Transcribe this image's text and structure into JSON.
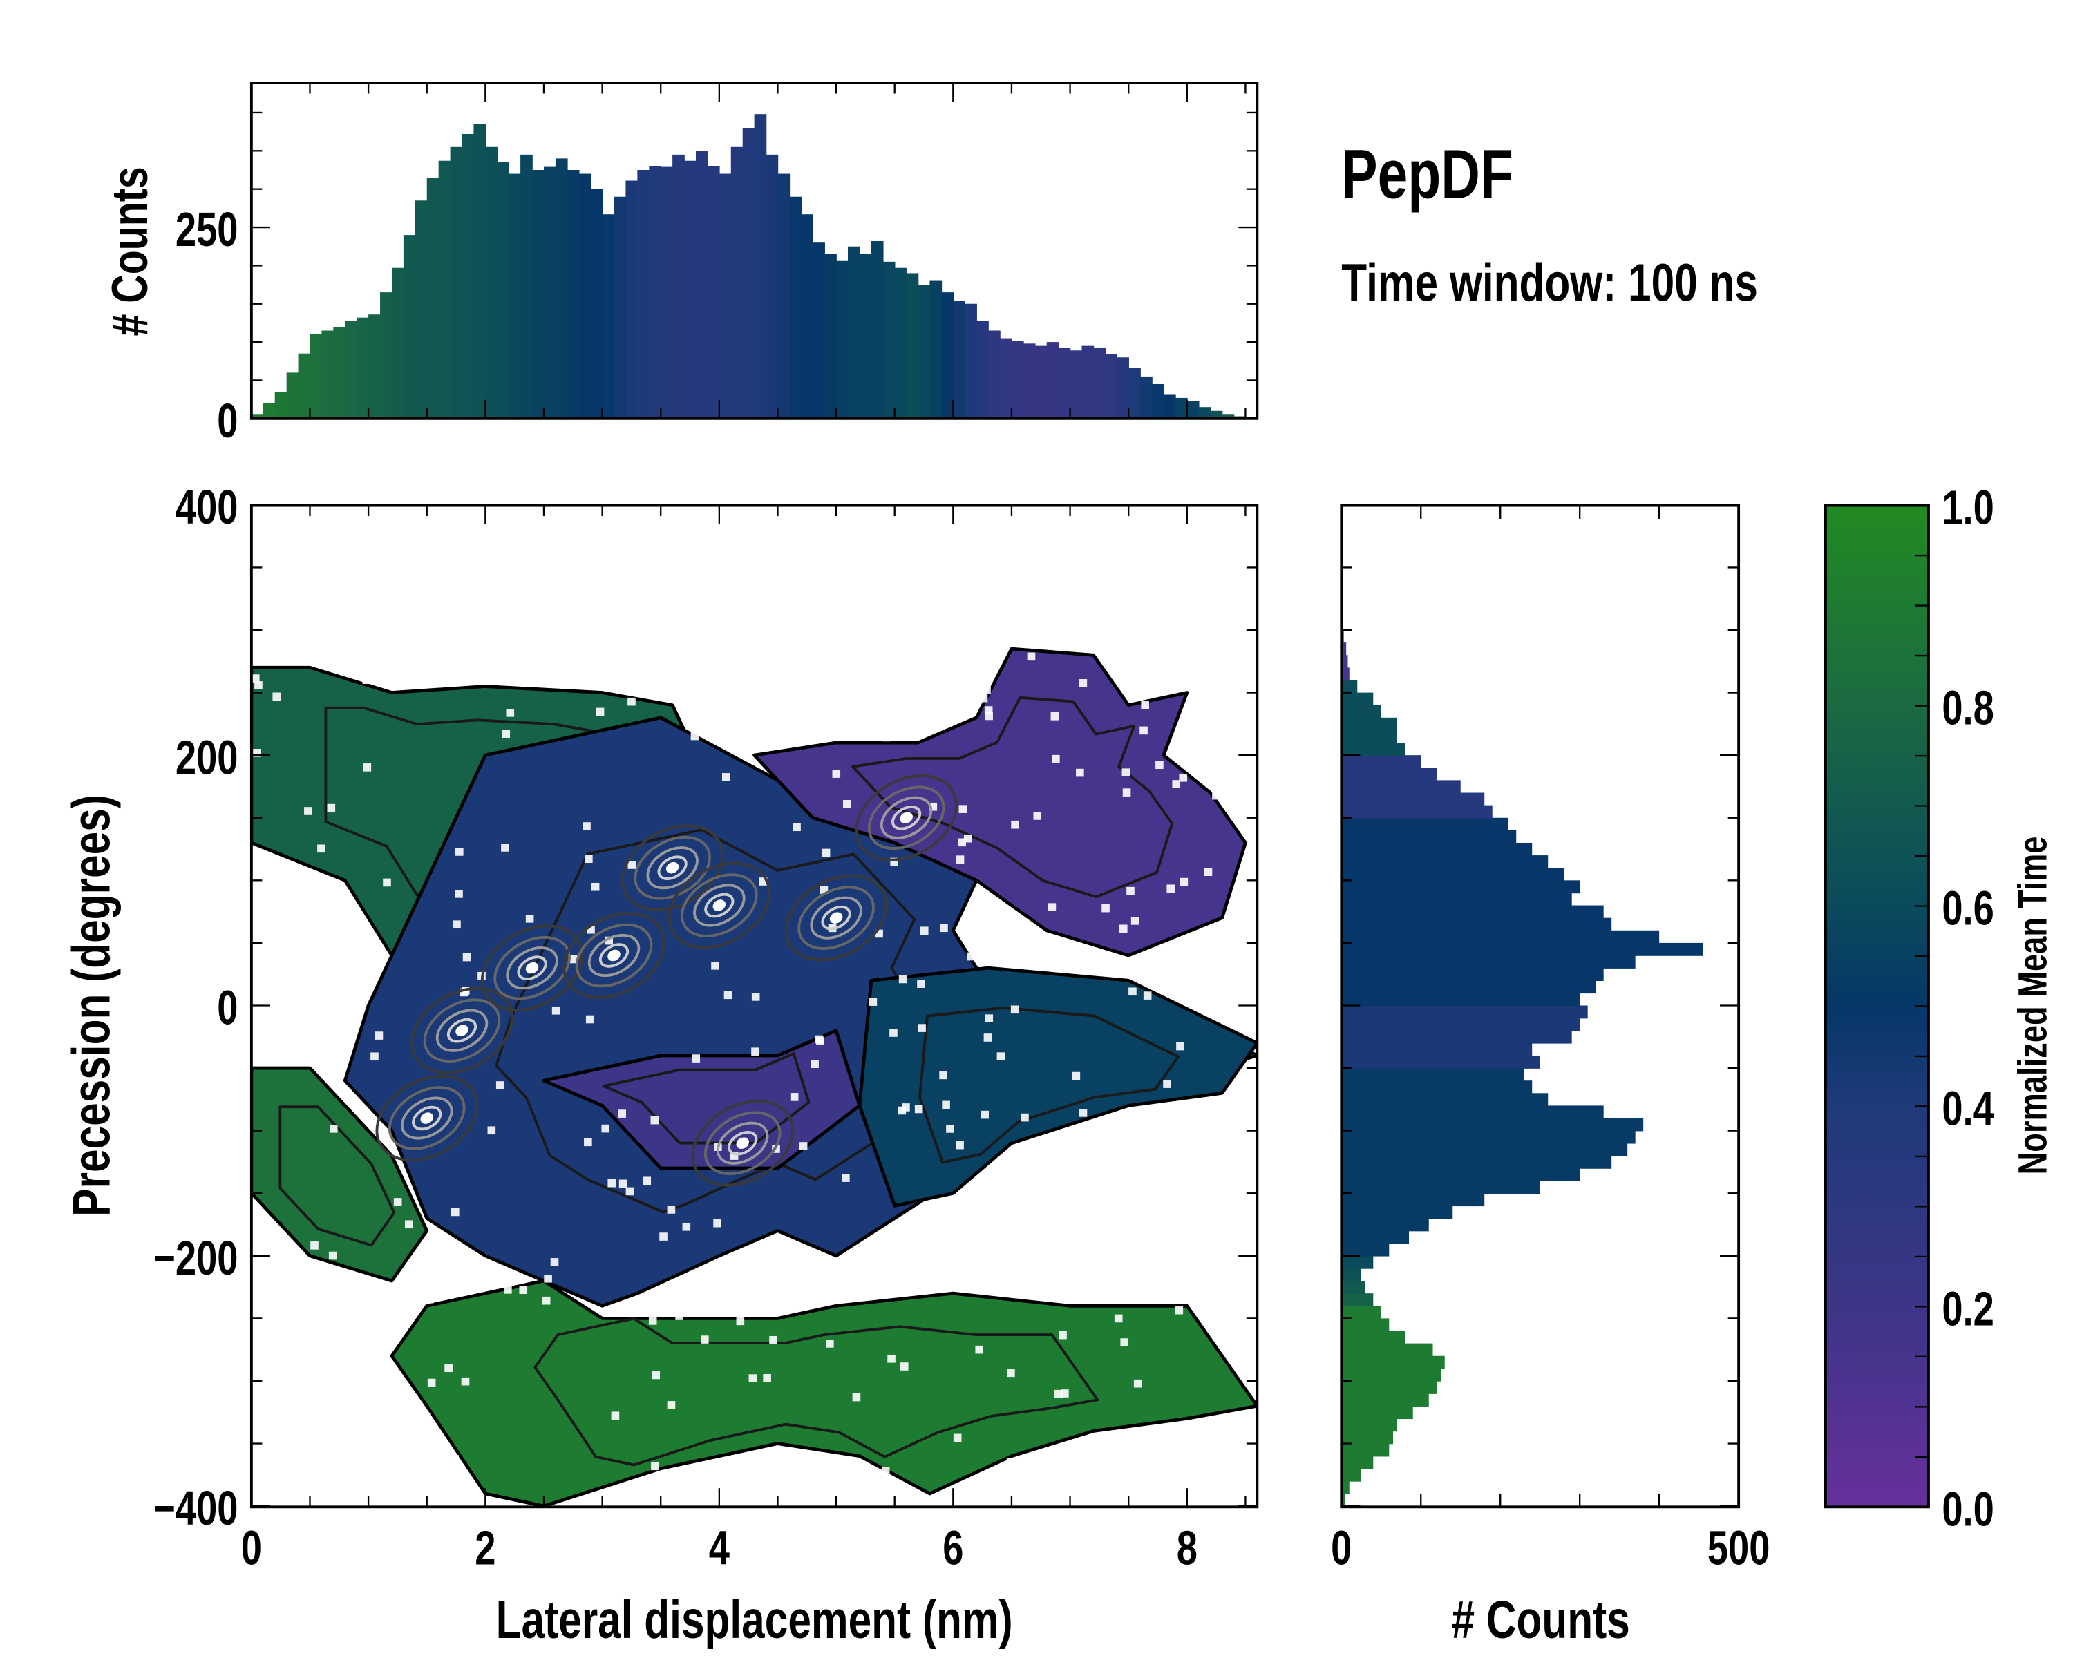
{
  "title": "PepDF",
  "subtitle": "Time window: 100 ns",
  "colormap": {
    "stops": [
      [
        0,
        "#66309a"
      ],
      [
        0.2,
        "#3d3588"
      ],
      [
        0.4,
        "#1f3a7a"
      ],
      [
        0.5,
        "#063768"
      ],
      [
        0.6,
        "#0b4a5c"
      ],
      [
        0.8,
        "#1a6a42"
      ],
      [
        1,
        "#228b22"
      ]
    ]
  },
  "chart_data": [
    {
      "type": "bar",
      "name": "top-histogram",
      "ylabel": "# Counts",
      "yticks": [
        "0",
        "250"
      ],
      "ytick_values": [
        0,
        250
      ],
      "xlim": [
        0,
        8.6
      ],
      "bin_start": 0,
      "bin_width": 0.1,
      "values": [
        5,
        20,
        35,
        60,
        85,
        110,
        115,
        120,
        128,
        132,
        136,
        165,
        197,
        240,
        285,
        315,
        337,
        355,
        372,
        385,
        355,
        335,
        320,
        345,
        325,
        329,
        340,
        325,
        320,
        300,
        267,
        290,
        311,
        325,
        330,
        329,
        345,
        337,
        350,
        330,
        320,
        355,
        380,
        398,
        345,
        320,
        290,
        267,
        230,
        215,
        206,
        225,
        215,
        232,
        205,
        197,
        190,
        175,
        180,
        165,
        154,
        150,
        128,
        115,
        105,
        101,
        98,
        95,
        100,
        92,
        89,
        95,
        92,
        84,
        80,
        66,
        55,
        45,
        31,
        27,
        23,
        15,
        10,
        5,
        3,
        1
      ],
      "mean_time": [
        0.9,
        0.9,
        0.88,
        0.86,
        0.85,
        0.84,
        0.82,
        0.8,
        0.78,
        0.76,
        0.75,
        0.73,
        0.72,
        0.7,
        0.7,
        0.68,
        0.68,
        0.67,
        0.66,
        0.65,
        0.64,
        0.62,
        0.6,
        0.58,
        0.56,
        0.55,
        0.54,
        0.52,
        0.5,
        0.5,
        0.48,
        0.45,
        0.42,
        0.4,
        0.38,
        0.37,
        0.36,
        0.36,
        0.35,
        0.35,
        0.36,
        0.37,
        0.38,
        0.4,
        0.42,
        0.45,
        0.48,
        0.5,
        0.5,
        0.52,
        0.53,
        0.55,
        0.55,
        0.56,
        0.58,
        0.6,
        0.62,
        0.6,
        0.55,
        0.5,
        0.45,
        0.4,
        0.35,
        0.3,
        0.28,
        0.27,
        0.26,
        0.25,
        0.25,
        0.26,
        0.27,
        0.27,
        0.28,
        0.3,
        0.35,
        0.4,
        0.45,
        0.48,
        0.5,
        0.55,
        0.55,
        0.6,
        0.65,
        0.7,
        0.75,
        0.8
      ]
    },
    {
      "type": "heatmap",
      "name": "main-2d-distribution",
      "xlabel": "Lateral displacement (nm)",
      "ylabel": "Precession (degrees)",
      "xlim": [
        0,
        8.6
      ],
      "ylim": [
        -400,
        400
      ],
      "xticks": [
        "0",
        "2",
        "4",
        "6",
        "8"
      ],
      "xtick_values": [
        0,
        2,
        4,
        6,
        8
      ],
      "yticks": [
        "400",
        "200",
        "0",
        "−200",
        "−400"
      ],
      "ytick_values": [
        400,
        200,
        0,
        -200,
        -400
      ],
      "regions": [
        {
          "mean_time": 0.75,
          "points": [
            [
              0,
              270
            ],
            [
              0.5,
              270
            ],
            [
              1.2,
              250
            ],
            [
              2,
              255
            ],
            [
              3,
              250
            ],
            [
              3.6,
              240
            ],
            [
              3.8,
              200
            ],
            [
              3.2,
              150
            ],
            [
              2.5,
              100
            ],
            [
              1.8,
              60
            ],
            [
              1.2,
              40
            ],
            [
              0.8,
              100
            ],
            [
              0,
              130
            ]
          ]
        },
        {
          "mean_time": 0.42,
          "points": [
            [
              1.2,
              40
            ],
            [
              2,
              200
            ],
            [
              3.5,
              230
            ],
            [
              4.5,
              180
            ],
            [
              5,
              190
            ],
            [
              5.5,
              200
            ],
            [
              6,
              150
            ],
            [
              6.3,
              120
            ],
            [
              6,
              60
            ],
            [
              6.2,
              30
            ],
            [
              6.8,
              10
            ],
            [
              8,
              -10
            ],
            [
              8.6,
              -40
            ],
            [
              7.5,
              -70
            ],
            [
              6.5,
              -100
            ],
            [
              6,
              -140
            ],
            [
              5.5,
              -170
            ],
            [
              5,
              -200
            ],
            [
              4.5,
              -180
            ],
            [
              4,
              -200
            ],
            [
              3.3,
              -230
            ],
            [
              3,
              -240
            ],
            [
              2,
              -200
            ],
            [
              1.5,
              -170
            ],
            [
              1.2,
              -100
            ],
            [
              0.8,
              -60
            ],
            [
              1,
              0
            ]
          ]
        },
        {
          "mean_time": 0.15,
          "points": [
            [
              4.3,
              200
            ],
            [
              5,
              210
            ],
            [
              5.7,
              210
            ],
            [
              6.2,
              230
            ],
            [
              6.5,
              285
            ],
            [
              7.2,
              280
            ],
            [
              7.5,
              240
            ],
            [
              8,
              250
            ],
            [
              7.8,
              200
            ],
            [
              8.2,
              170
            ],
            [
              8.5,
              130
            ],
            [
              8.3,
              70
            ],
            [
              7.5,
              40
            ],
            [
              6.8,
              60
            ],
            [
              6.2,
              100
            ],
            [
              5.5,
              130
            ],
            [
              4.8,
              150
            ]
          ]
        },
        {
          "mean_time": 0.55,
          "points": [
            [
              5.3,
              20
            ],
            [
              6.3,
              30
            ],
            [
              7.5,
              20
            ],
            [
              8.6,
              -30
            ],
            [
              8.3,
              -70
            ],
            [
              7.5,
              -80
            ],
            [
              6.5,
              -110
            ],
            [
              6,
              -150
            ],
            [
              5.5,
              -160
            ],
            [
              5.2,
              -80
            ]
          ]
        },
        {
          "mean_time": 0.2,
          "points": [
            [
              2.5,
              -60
            ],
            [
              3.5,
              -40
            ],
            [
              4.5,
              -40
            ],
            [
              5,
              -20
            ],
            [
              5.2,
              -80
            ],
            [
              4.5,
              -130
            ],
            [
              3.5,
              -130
            ],
            [
              3,
              -80
            ]
          ]
        },
        {
          "mean_time": 0.85,
          "points": [
            [
              0,
              -50
            ],
            [
              0.5,
              -50
            ],
            [
              1.2,
              -120
            ],
            [
              1.5,
              -180
            ],
            [
              1.2,
              -220
            ],
            [
              0.5,
              -200
            ],
            [
              0,
              -150
            ]
          ]
        },
        {
          "mean_time": 0.9,
          "points": [
            [
              1.5,
              -240
            ],
            [
              2.5,
              -220
            ],
            [
              3,
              -250
            ],
            [
              4.5,
              -250
            ],
            [
              5,
              -240
            ],
            [
              6,
              -230
            ],
            [
              7,
              -240
            ],
            [
              8,
              -240
            ],
            [
              8.6,
              -320
            ],
            [
              8,
              -330
            ],
            [
              7.2,
              -340
            ],
            [
              6.5,
              -360
            ],
            [
              5.8,
              -390
            ],
            [
              5.2,
              -360
            ],
            [
              4.5,
              -350
            ],
            [
              3.5,
              -370
            ],
            [
              2.5,
              -400
            ],
            [
              2,
              -390
            ],
            [
              1.5,
              -320
            ],
            [
              1.2,
              -280
            ]
          ]
        }
      ],
      "density_peaks": [
        [
          1.8,
          -20
        ],
        [
          2.4,
          30
        ],
        [
          1.5,
          -90
        ],
        [
          3.6,
          110
        ],
        [
          4.0,
          80
        ],
        [
          4.2,
          -110
        ],
        [
          5.0,
          70
        ],
        [
          3.1,
          40
        ],
        [
          5.6,
          150
        ]
      ]
    },
    {
      "type": "bar",
      "name": "right-histogram",
      "orientation": "horizontal",
      "xlabel": "# Counts",
      "xticks": [
        "0",
        "500"
      ],
      "xtick_values": [
        0,
        500
      ],
      "bin_start": -400,
      "bin_width": 10,
      "values": [
        5,
        10,
        25,
        40,
        60,
        65,
        70,
        90,
        110,
        120,
        125,
        130,
        115,
        80,
        60,
        50,
        40,
        30,
        25,
        40,
        60,
        85,
        110,
        140,
        180,
        250,
        300,
        340,
        360,
        370,
        380,
        330,
        260,
        240,
        230,
        250,
        240,
        290,
        300,
        310,
        300,
        320,
        330,
        370,
        455,
        400,
        340,
        330,
        290,
        300,
        280,
        260,
        240,
        220,
        210,
        190,
        180,
        150,
        120,
        100,
        80,
        70,
        70,
        50,
        40,
        20,
        10,
        8,
        6,
        3,
        2,
        0,
        0,
        0,
        0,
        0,
        0,
        0,
        0,
        0
      ],
      "mean_time": [
        0.9,
        0.9,
        0.9,
        0.9,
        0.9,
        0.9,
        0.9,
        0.9,
        0.9,
        0.9,
        0.9,
        0.9,
        0.9,
        0.9,
        0.9,
        0.9,
        0.75,
        0.7,
        0.65,
        0.6,
        0.52,
        0.52,
        0.52,
        0.52,
        0.52,
        0.52,
        0.52,
        0.52,
        0.52,
        0.52,
        0.52,
        0.52,
        0.52,
        0.52,
        0.52,
        0.42,
        0.42,
        0.42,
        0.42,
        0.42,
        0.5,
        0.5,
        0.5,
        0.5,
        0.5,
        0.5,
        0.5,
        0.5,
        0.5,
        0.5,
        0.5,
        0.5,
        0.5,
        0.5,
        0.5,
        0.35,
        0.35,
        0.35,
        0.35,
        0.35,
        0.62,
        0.62,
        0.62,
        0.62,
        0.62,
        0.62,
        0.15,
        0.15,
        0.15,
        0.15,
        0.15,
        0,
        0,
        0,
        0,
        0,
        0,
        0,
        0,
        0
      ]
    },
    {
      "type": "colorbar",
      "name": "colorbar",
      "label": "Normalized Mean Time",
      "ticks": [
        "0.0",
        "0.2",
        "0.4",
        "0.6",
        "0.8",
        "1.0"
      ],
      "tick_values": [
        0,
        0.2,
        0.4,
        0.6,
        0.8,
        1.0
      ]
    }
  ]
}
